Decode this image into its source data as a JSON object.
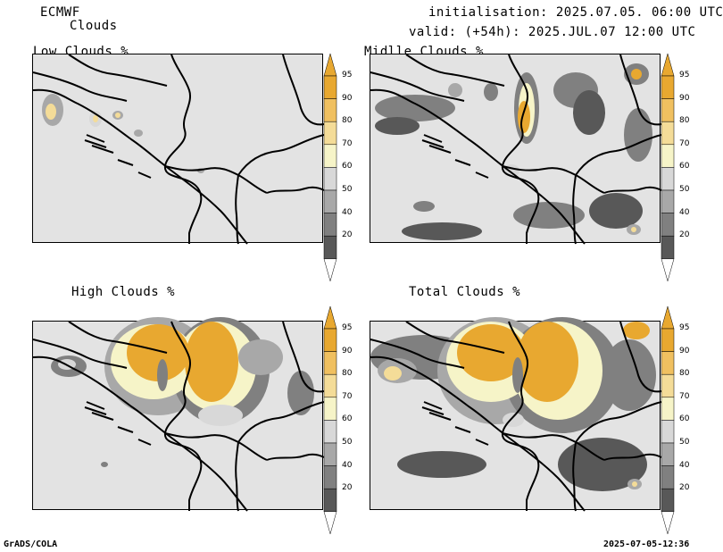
{
  "header": {
    "model": "ECMWF",
    "product": "Clouds",
    "init": "initialisation: 2025.07.05. 06:00 UTC",
    "valid": "valid: (+54h): 2025.JUL.07 12:00 UTC"
  },
  "panels": [
    {
      "title": "Low Clouds %"
    },
    {
      "title": "Midlle Clouds %"
    },
    {
      "title": "High Clouds %"
    },
    {
      "title": "Total Clouds %"
    }
  ],
  "colorbar": {
    "levels": [
      "95",
      "90",
      "80",
      "70",
      "60",
      "50",
      "40",
      "20"
    ],
    "colors": {
      "c95": "#e8a830",
      "c90": "#f0c060",
      "c80": "#f4dc98",
      "c70": "#f6f4c8",
      "c60": "#d8d8d8",
      "c50": "#a8a8a8",
      "c40": "#808080",
      "c20": "#585858",
      "bg": "#e3e3e3"
    }
  },
  "footer": {
    "left": "GrADS/COLA",
    "right": "2025-07-05-12:36"
  }
}
